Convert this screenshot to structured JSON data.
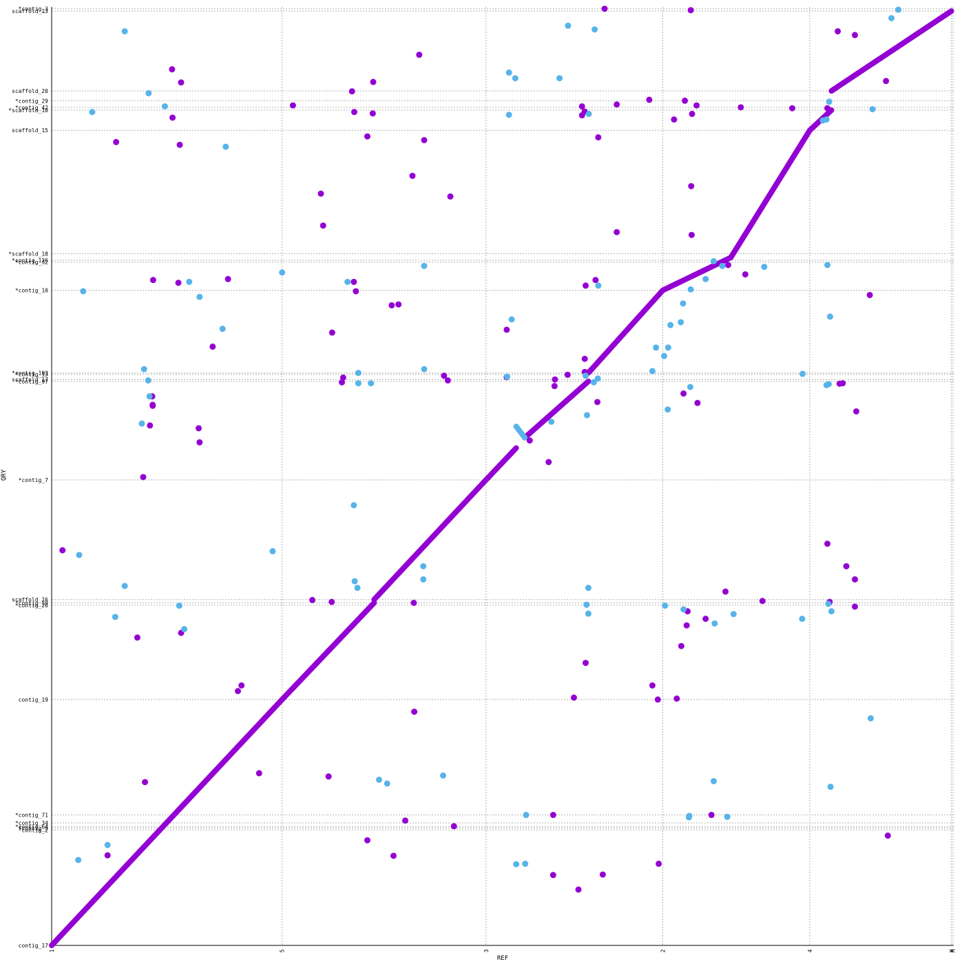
{
  "chart_data": {
    "type": "scatter",
    "title": "",
    "xlabel": "REF",
    "ylabel": "QRY",
    "colors": {
      "forward": "#9400d3",
      "reverse": "#56b4e9",
      "grid": "#b3b3b3"
    },
    "grid": true,
    "x_ticks": [
      {
        "label": "1",
        "pos": 0.0
      },
      {
        "label": "5",
        "pos": 0.2555
      },
      {
        "label": "3",
        "pos": 0.4815
      },
      {
        "label": "2",
        "pos": 0.6775
      },
      {
        "label": "4",
        "pos": 0.8405
      },
      {
        "label": "X",
        "pos": 0.9974
      },
      {
        "label": "M",
        "pos": 0.9992
      }
    ],
    "y_ticks": [
      {
        "label": "contig_17",
        "pos": 0.0
      },
      {
        "label": "*contig_2",
        "pos": 0.123
      },
      {
        "label": "*contig_5",
        "pos": 0.125
      },
      {
        "label": "*contig_64",
        "pos": 0.1265
      },
      {
        "label": "*contig_34",
        "pos": 0.1305
      },
      {
        "label": "*contig_71",
        "pos": 0.139
      },
      {
        "label": "contig_19",
        "pos": 0.262
      },
      {
        "label": "*contig_26",
        "pos": 0.3625
      },
      {
        "label": "*contig_59",
        "pos": 0.365
      },
      {
        "label": "scaffold_16",
        "pos": 0.3685
      },
      {
        "label": "*contig_7",
        "pos": 0.496
      },
      {
        "label": "*contig_97",
        "pos": 0.601
      },
      {
        "label": "scaffold_17",
        "pos": 0.603
      },
      {
        "label": "*contig_13",
        "pos": 0.6085
      },
      {
        "label": "*contig_103",
        "pos": 0.61
      },
      {
        "label": "*contig_10",
        "pos": 0.698
      },
      {
        "label": "*contig_32",
        "pos": 0.728
      },
      {
        "label": "*contig_126",
        "pos": 0.73
      },
      {
        "label": "*scaffold_18",
        "pos": 0.737
      },
      {
        "label": "scaffold_15",
        "pos": 0.8685
      },
      {
        "label": "*scaffold_10",
        "pos": 0.89
      },
      {
        "label": "*contig_42",
        "pos": 0.893
      },
      {
        "label": "*contig_29",
        "pos": 0.9
      },
      {
        "label": "scaffold_20",
        "pos": 0.9105
      },
      {
        "label": "scaffold_13",
        "pos": 0.9955
      },
      {
        "label": "*contig_3",
        "pos": 0.998
      }
    ],
    "xlim": [
      0,
      1
    ],
    "ylim": [
      0,
      1
    ],
    "series": [
      {
        "orientation": "forward",
        "segments": [
          {
            "x": [
              0.0,
              0.2555
            ],
            "y": [
              0.0,
              0.262
            ]
          },
          {
            "x": [
              0.2555,
              0.3575
            ],
            "y": [
              0.262,
              0.365
            ]
          },
          {
            "x": [
              0.3575,
              0.4815
            ],
            "y": [
              0.3685,
              0.496
            ]
          },
          {
            "x": [
              0.4815,
              0.515
            ],
            "y": [
              0.496,
              0.53
            ]
          },
          {
            "x": [
              0.5245,
              0.595
            ],
            "y": [
              0.541,
              0.601
            ]
          },
          {
            "x": [
              0.595,
              0.6775
            ],
            "y": [
              0.61,
              0.698
            ]
          },
          {
            "x": [
              0.6775,
              0.753
            ],
            "y": [
              0.698,
              0.733
            ]
          },
          {
            "x": [
              0.753,
              0.8405
            ],
            "y": [
              0.733,
              0.8685
            ]
          },
          {
            "x": [
              0.8405,
              0.8645
            ],
            "y": [
              0.8685,
              0.89
            ]
          },
          {
            "x": [
              0.8645,
              0.9974
            ],
            "y": [
              0.9105,
              0.9955
            ]
          }
        ],
        "points": [
          [
            0.012,
            0.421
          ],
          [
            0.0715,
            0.856
          ],
          [
            0.142,
            0.853
          ],
          [
            0.134,
            0.882
          ],
          [
            0.1335,
            0.9335
          ],
          [
            0.1435,
            0.9195
          ],
          [
            0.1125,
            0.709
          ],
          [
            0.1405,
            0.706
          ],
          [
            0.1955,
            0.71
          ],
          [
            0.1785,
            0.638
          ],
          [
            0.1115,
            0.585
          ],
          [
            0.112,
            0.576
          ],
          [
            0.112,
            0.575
          ],
          [
            0.109,
            0.554
          ],
          [
            0.163,
            0.551
          ],
          [
            0.164,
            0.536
          ],
          [
            0.1015,
            0.499
          ],
          [
            0.095,
            0.328
          ],
          [
            0.1435,
            0.333
          ],
          [
            0.2065,
            0.271
          ],
          [
            0.1035,
            0.174
          ],
          [
            0.062,
            0.096
          ],
          [
            0.4075,
            0.949
          ],
          [
            0.2675,
            0.895
          ],
          [
            0.3355,
            0.888
          ],
          [
            0.35,
            0.862
          ],
          [
            0.3565,
            0.92
          ],
          [
            0.333,
            0.91
          ],
          [
            0.356,
            0.8865
          ],
          [
            0.4,
            0.82
          ],
          [
            0.442,
            0.798
          ],
          [
            0.2985,
            0.801
          ],
          [
            0.301,
            0.767
          ],
          [
            0.335,
            0.707
          ],
          [
            0.3373,
            0.697
          ],
          [
            0.377,
            0.682
          ],
          [
            0.3845,
            0.683
          ],
          [
            0.3232,
            0.605
          ],
          [
            0.3218,
            0.6
          ],
          [
            0.4392,
            0.602
          ],
          [
            0.311,
            0.653
          ],
          [
            0.5045,
            0.6055
          ],
          [
            0.558,
            0.603
          ],
          [
            0.572,
            0.608
          ],
          [
            0.591,
            0.611
          ],
          [
            0.5575,
            0.596
          ],
          [
            0.551,
            0.515
          ],
          [
            0.592,
            0.703
          ],
          [
            0.603,
            0.709
          ],
          [
            0.6265,
            0.76
          ],
          [
            0.6265,
            0.896
          ],
          [
            0.613,
            0.998
          ],
          [
            0.606,
            0.861
          ],
          [
            0.588,
            0.894
          ],
          [
            0.588,
            0.8845
          ],
          [
            0.591,
            0.8885
          ],
          [
            0.413,
            0.858
          ],
          [
            0.435,
            0.607
          ],
          [
            0.6625,
            0.901
          ],
          [
            0.53,
            0.538
          ],
          [
            0.7085,
            0.9965
          ],
          [
            0.715,
            0.895
          ],
          [
            0.71,
            0.886
          ],
          [
            0.702,
            0.9
          ],
          [
            0.69,
            0.88
          ],
          [
            0.7095,
            0.757
          ],
          [
            0.709,
            0.809
          ],
          [
            0.764,
            0.893
          ],
          [
            0.769,
            0.715
          ],
          [
            0.75,
            0.725
          ],
          [
            0.716,
            0.578
          ],
          [
            0.7005,
            0.588
          ],
          [
            0.5045,
            0.656
          ],
          [
            0.591,
            0.625
          ],
          [
            0.605,
            0.579
          ],
          [
            0.3105,
            0.366
          ],
          [
            0.4015,
            0.365
          ],
          [
            0.289,
            0.368
          ],
          [
            0.592,
            0.301
          ],
          [
            0.698,
            0.319
          ],
          [
            0.705,
            0.356
          ],
          [
            0.725,
            0.348
          ],
          [
            0.747,
            0.377
          ],
          [
            0.788,
            0.367
          ],
          [
            0.704,
            0.341
          ],
          [
            0.666,
            0.277
          ],
          [
            0.672,
            0.262
          ],
          [
            0.693,
            0.263
          ],
          [
            0.579,
            0.264
          ],
          [
            0.402,
            0.249
          ],
          [
            0.86,
            0.428
          ],
          [
            0.881,
            0.404
          ],
          [
            0.8905,
            0.39
          ],
          [
            0.8625,
            0.366
          ],
          [
            0.8905,
            0.361
          ],
          [
            0.8715,
            0.974
          ],
          [
            0.8905,
            0.97
          ],
          [
            0.925,
            0.921
          ],
          [
            0.907,
            0.693
          ],
          [
            0.8735,
            0.5985
          ],
          [
            0.877,
            0.599
          ],
          [
            0.892,
            0.569
          ],
          [
            0.86,
            0.892
          ],
          [
            0.821,
            0.892
          ],
          [
            0.23,
            0.1835
          ],
          [
            0.392,
            0.133
          ],
          [
            0.379,
            0.0955
          ],
          [
            0.611,
            0.0755
          ],
          [
            0.556,
            0.075
          ],
          [
            0.556,
            0.139
          ],
          [
            0.7315,
            0.139
          ],
          [
            0.35,
            0.112
          ],
          [
            0.307,
            0.18
          ],
          [
            0.2105,
            0.277
          ],
          [
            0.446,
            0.127
          ],
          [
            0.927,
            0.117
          ],
          [
            0.584,
            0.0595
          ],
          [
            0.673,
            0.087
          ]
        ]
      },
      {
        "orientation": "reverse",
        "segments": [
          {
            "x": [
              0.515,
              0.5245
            ],
            "y": [
              0.553,
              0.541
            ]
          }
        ],
        "points": [
          [
            0.081,
            0.974
          ],
          [
            0.045,
            0.888
          ],
          [
            0.1075,
            0.908
          ],
          [
            0.1255,
            0.894
          ],
          [
            0.193,
            0.851
          ],
          [
            0.1525,
            0.707
          ],
          [
            0.035,
            0.697
          ],
          [
            0.164,
            0.691
          ],
          [
            0.1895,
            0.657
          ],
          [
            0.1025,
            0.614
          ],
          [
            0.107,
            0.602
          ],
          [
            0.1085,
            0.585
          ],
          [
            0.1,
            0.556
          ],
          [
            0.0305,
            0.416
          ],
          [
            0.081,
            0.383
          ],
          [
            0.1415,
            0.362
          ],
          [
            0.147,
            0.337
          ],
          [
            0.0705,
            0.35
          ],
          [
            0.062,
            0.107
          ],
          [
            0.0295,
            0.091
          ],
          [
            0.328,
            0.707
          ],
          [
            0.34,
            0.61
          ],
          [
            0.34,
            0.599
          ],
          [
            0.354,
            0.599
          ],
          [
            0.413,
            0.614
          ],
          [
            0.2555,
            0.717
          ],
          [
            0.335,
            0.469
          ],
          [
            0.339,
            0.381
          ],
          [
            0.336,
            0.388
          ],
          [
            0.412,
            0.404
          ],
          [
            0.413,
            0.724
          ],
          [
            0.5725,
            0.98
          ],
          [
            0.602,
            0.976
          ],
          [
            0.507,
            0.93
          ],
          [
            0.514,
            0.924
          ],
          [
            0.507,
            0.885
          ],
          [
            0.563,
            0.924
          ],
          [
            0.5955,
            0.886
          ],
          [
            0.606,
            0.703
          ],
          [
            0.51,
            0.667
          ],
          [
            0.505,
            0.606
          ],
          [
            0.592,
            0.607
          ],
          [
            0.6055,
            0.604
          ],
          [
            0.601,
            0.6
          ],
          [
            0.554,
            0.558
          ],
          [
            0.5935,
            0.565
          ],
          [
            0.683,
            0.571
          ],
          [
            0.708,
            0.595
          ],
          [
            0.666,
            0.612
          ],
          [
            0.67,
            0.637
          ],
          [
            0.679,
            0.628
          ],
          [
            0.686,
            0.661
          ],
          [
            0.6975,
            0.664
          ],
          [
            0.6835,
            0.637
          ],
          [
            0.7,
            0.684
          ],
          [
            0.7085,
            0.699
          ],
          [
            0.725,
            0.71
          ],
          [
            0.7435,
            0.724
          ],
          [
            0.79,
            0.723
          ],
          [
            0.734,
            0.729
          ],
          [
            0.86,
            0.725
          ],
          [
            0.863,
            0.67
          ],
          [
            0.8325,
            0.609
          ],
          [
            0.859,
            0.597
          ],
          [
            0.8615,
            0.598
          ],
          [
            0.862,
            0.899
          ],
          [
            0.855,
            0.879
          ],
          [
            0.859,
            0.88
          ],
          [
            0.91,
            0.891
          ],
          [
            0.931,
            0.988
          ],
          [
            0.9386,
            0.997
          ],
          [
            0.595,
            0.381
          ],
          [
            0.593,
            0.363
          ],
          [
            0.595,
            0.3535
          ],
          [
            0.68,
            0.362
          ],
          [
            0.7005,
            0.358
          ],
          [
            0.735,
            0.343
          ],
          [
            0.756,
            0.353
          ],
          [
            0.832,
            0.348
          ],
          [
            0.861,
            0.364
          ],
          [
            0.8645,
            0.356
          ],
          [
            0.908,
            0.242
          ],
          [
            0.8635,
            0.169
          ],
          [
            0.749,
            0.137
          ],
          [
            0.7065,
            0.1365
          ],
          [
            0.707,
            0.138
          ],
          [
            0.734,
            0.175
          ],
          [
            0.526,
            0.139
          ],
          [
            0.525,
            0.087
          ],
          [
            0.515,
            0.0865
          ],
          [
            0.434,
            0.181
          ],
          [
            0.372,
            0.1725
          ],
          [
            0.363,
            0.1765
          ],
          [
            0.245,
            0.42
          ],
          [
            0.412,
            0.39
          ]
        ]
      }
    ]
  }
}
